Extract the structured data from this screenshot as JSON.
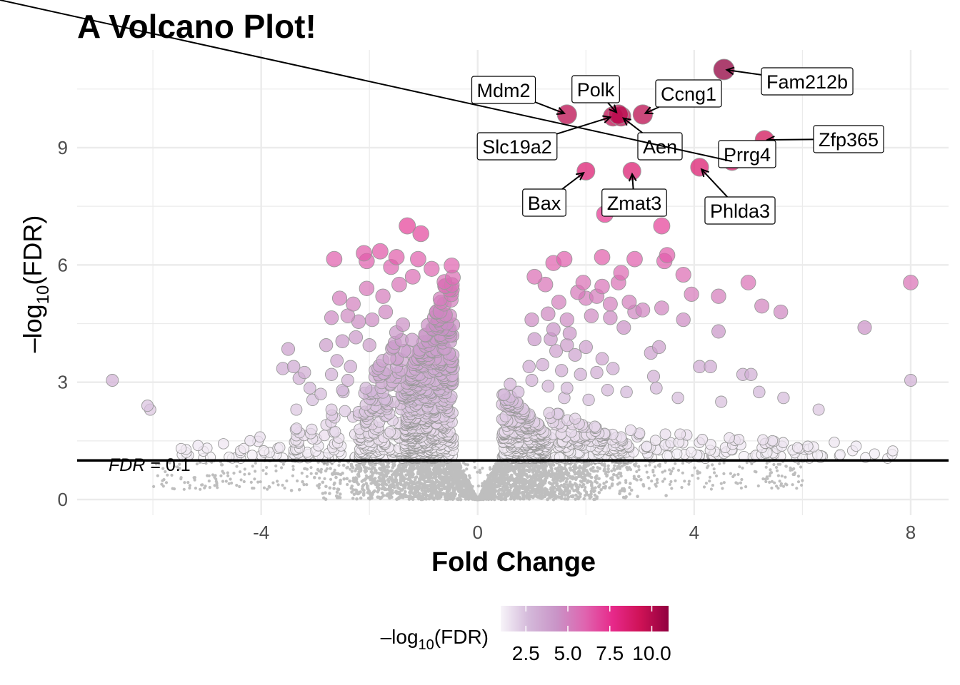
{
  "colors": {
    "background": "#ffffff",
    "grid": "#ebebeb",
    "nonsig_point": "#bebebe",
    "sig_point_stroke": "#9a9a9a",
    "threshold_line": "#000000",
    "gradient": [
      "#f7f4f9",
      "#d4b9da",
      "#c994c7",
      "#df65b0",
      "#e7298a",
      "#ce1256",
      "#91003f"
    ]
  },
  "chart_data": {
    "type": "scatter",
    "title": "A Volcano Plot!",
    "xlabel": "Fold Change",
    "ylabel": {
      "pre": "–log",
      "sub": "10",
      "post": "(FDR)"
    },
    "xlim": [
      -7.4,
      8.7
    ],
    "ylim": [
      -0.4,
      11.5
    ],
    "x_ticks": [
      -4,
      0,
      4,
      8
    ],
    "y_ticks": [
      0,
      3,
      6,
      9
    ],
    "grid": true,
    "threshold": {
      "y": 1,
      "label": {
        "italic": "FDR",
        "rest": " = 0.1"
      }
    },
    "legend": {
      "position": "bottom",
      "title": {
        "pre": "–log",
        "sub": "10",
        "post": "(FDR)"
      },
      "min": 1,
      "max": 11,
      "ticks": [
        2.5,
        5.0,
        7.5,
        10.0
      ],
      "tick_labels": [
        "2.5",
        "5.0",
        "7.5",
        "10.0"
      ]
    },
    "labeled_genes": [
      {
        "name": "Fam212b",
        "x": 4.55,
        "y": 11.0
      },
      {
        "name": "Mdm2",
        "x": 1.65,
        "y": 9.85
      },
      {
        "name": "Polk",
        "x": 2.6,
        "y": 9.85
      },
      {
        "name": "Ccng1",
        "x": 3.05,
        "y": 9.85
      },
      {
        "name": "Slc19a2",
        "x": 2.5,
        "y": 9.8
      },
      {
        "name": "Aen",
        "x": 2.65,
        "y": 9.8
      },
      {
        "name": "Zfp365",
        "x": 5.3,
        "y": 9.2
      },
      {
        "name": "Prrg4",
        "x": 4.7,
        "y": 8.65
      },
      {
        "name": "Bax",
        "x": 2.0,
        "y": 8.4
      },
      {
        "name": "Zmat3",
        "x": 2.85,
        "y": 8.4
      },
      {
        "name": "Phlda3",
        "x": 4.1,
        "y": 8.5
      }
    ],
    "other_sig_points": [
      [
        -1.3,
        7.0
      ],
      [
        -1.05,
        6.8
      ],
      [
        -2.65,
        6.15
      ],
      [
        -2.1,
        6.3
      ],
      [
        -1.8,
        6.35
      ],
      [
        -1.5,
        6.2
      ],
      [
        -1.1,
        6.15
      ],
      [
        -0.85,
        5.9
      ],
      [
        -2.05,
        6.1
      ],
      [
        -1.6,
        5.95
      ],
      [
        -2.55,
        5.15
      ],
      [
        -2.3,
        5.0
      ],
      [
        -2.05,
        5.4
      ],
      [
        -1.75,
        5.2
      ],
      [
        -1.45,
        5.5
      ],
      [
        -1.2,
        5.7
      ],
      [
        -2.7,
        4.65
      ],
      [
        -2.4,
        4.7
      ],
      [
        -2.2,
        4.55
      ],
      [
        -1.95,
        4.6
      ],
      [
        -1.7,
        4.8
      ],
      [
        -2.5,
        4.05
      ],
      [
        -2.25,
        4.15
      ],
      [
        -2.0,
        3.95
      ],
      [
        -2.8,
        3.95
      ],
      [
        -2.6,
        3.55
      ],
      [
        -2.35,
        3.4
      ],
      [
        -3.5,
        3.85
      ],
      [
        -3.4,
        3.4
      ],
      [
        -3.6,
        3.35
      ],
      [
        -3.3,
        3.1
      ],
      [
        -3.2,
        3.25
      ],
      [
        -3.1,
        2.85
      ],
      [
        -2.9,
        2.7
      ],
      [
        -2.7,
        3.2
      ],
      [
        -2.5,
        2.8
      ],
      [
        -2.4,
        3.05
      ],
      [
        -6.75,
        3.05
      ],
      [
        -6.1,
        2.4
      ],
      [
        -6.05,
        2.3
      ],
      [
        -3.05,
        2.55
      ],
      [
        -2.7,
        2.3
      ],
      [
        -3.35,
        2.3
      ],
      [
        2.35,
        7.3
      ],
      [
        3.4,
        7.0
      ],
      [
        1.4,
        6.05
      ],
      [
        1.6,
        6.15
      ],
      [
        2.3,
        6.2
      ],
      [
        2.9,
        6.15
      ],
      [
        3.5,
        6.25
      ],
      [
        3.45,
        6.1
      ],
      [
        1.05,
        5.7
      ],
      [
        1.25,
        5.5
      ],
      [
        1.95,
        5.55
      ],
      [
        2.3,
        5.45
      ],
      [
        2.6,
        5.55
      ],
      [
        2.65,
        5.8
      ],
      [
        3.8,
        5.75
      ],
      [
        3.95,
        5.25
      ],
      [
        4.45,
        5.2
      ],
      [
        5.0,
        5.55
      ],
      [
        8.0,
        5.55
      ],
      [
        1.5,
        5.05
      ],
      [
        1.85,
        5.3
      ],
      [
        2.0,
        5.15
      ],
      [
        2.2,
        5.2
      ],
      [
        2.45,
        5.0
      ],
      [
        2.8,
        5.05
      ],
      [
        3.05,
        4.85
      ],
      [
        3.4,
        4.9
      ],
      [
        5.25,
        4.95
      ],
      [
        5.6,
        4.8
      ],
      [
        1.0,
        4.6
      ],
      [
        1.3,
        4.75
      ],
      [
        1.65,
        4.6
      ],
      [
        2.1,
        4.7
      ],
      [
        2.45,
        4.65
      ],
      [
        2.9,
        4.8
      ],
      [
        3.8,
        4.6
      ],
      [
        4.45,
        4.3
      ],
      [
        7.15,
        4.4
      ],
      [
        1.4,
        4.35
      ],
      [
        1.7,
        4.25
      ],
      [
        2.7,
        4.4
      ],
      [
        1.05,
        4.1
      ],
      [
        1.35,
        4.1
      ],
      [
        1.65,
        3.95
      ],
      [
        2.0,
        3.9
      ],
      [
        3.35,
        3.9
      ],
      [
        3.2,
        3.75
      ],
      [
        1.45,
        3.8
      ],
      [
        1.8,
        3.7
      ],
      [
        2.3,
        3.6
      ],
      [
        0.95,
        3.4
      ],
      [
        1.2,
        3.45
      ],
      [
        1.55,
        3.3
      ],
      [
        1.9,
        3.2
      ],
      [
        2.2,
        3.25
      ],
      [
        2.5,
        3.35
      ],
      [
        3.25,
        3.15
      ],
      [
        4.1,
        3.4
      ],
      [
        4.3,
        3.4
      ],
      [
        4.9,
        3.2
      ],
      [
        5.05,
        3.2
      ],
      [
        1.0,
        3.05
      ],
      [
        1.3,
        2.9
      ],
      [
        1.65,
        2.85
      ],
      [
        2.4,
        2.8
      ],
      [
        2.75,
        2.75
      ],
      [
        3.3,
        2.85
      ],
      [
        5.2,
        2.75
      ],
      [
        5.65,
        2.6
      ],
      [
        8.0,
        3.05
      ],
      [
        0.6,
        2.95
      ],
      [
        0.75,
        2.75
      ],
      [
        1.6,
        2.6
      ],
      [
        2.05,
        2.55
      ],
      [
        3.7,
        2.6
      ],
      [
        4.5,
        2.5
      ],
      [
        6.3,
        2.3
      ]
    ],
    "dense_clusters": [
      {
        "x_min": -1.35,
        "x_max": -0.45,
        "y_min": 1.05,
        "y_max": 6.2,
        "count": 520
      },
      {
        "x_min": -2.2,
        "x_max": -1.2,
        "y_min": 1.05,
        "y_max": 5.2,
        "count": 200
      },
      {
        "x_min": -3.4,
        "x_max": -2.1,
        "y_min": 1.05,
        "y_max": 3.2,
        "count": 60
      },
      {
        "x_min": -5.5,
        "x_max": -3.3,
        "y_min": 1.05,
        "y_max": 1.8,
        "count": 35
      },
      {
        "x_min": 0.45,
        "x_max": 1.3,
        "y_min": 1.05,
        "y_max": 2.9,
        "count": 300
      },
      {
        "x_min": 1.3,
        "x_max": 2.8,
        "y_min": 1.05,
        "y_max": 2.4,
        "count": 160
      },
      {
        "x_min": 2.8,
        "x_max": 6.5,
        "y_min": 1.05,
        "y_max": 1.9,
        "count": 90
      },
      {
        "x_min": 6.5,
        "x_max": 7.7,
        "y_min": 1.05,
        "y_max": 1.6,
        "count": 10
      }
    ]
  }
}
